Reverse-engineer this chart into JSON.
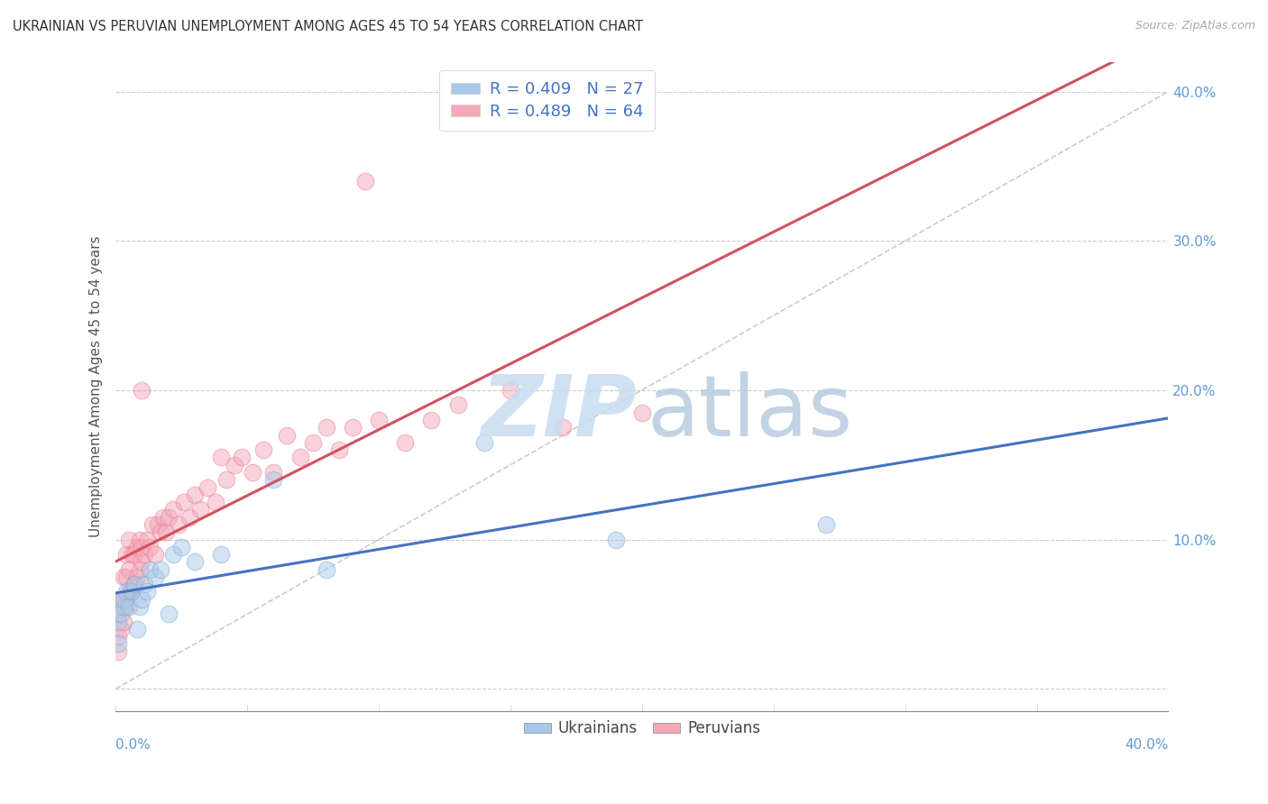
{
  "title": "UKRAINIAN VS PERUVIAN UNEMPLOYMENT AMONG AGES 45 TO 54 YEARS CORRELATION CHART",
  "source": "Source: ZipAtlas.com",
  "ylabel": "Unemployment Among Ages 45 to 54 years",
  "xlim": [
    0.0,
    0.4
  ],
  "ylim": [
    -0.015,
    0.42
  ],
  "yticks": [
    0.0,
    0.1,
    0.2,
    0.3,
    0.4
  ],
  "ytick_labels": [
    "",
    "10.0%",
    "20.0%",
    "30.0%",
    "40.0%"
  ],
  "legend_label_ukrainians": "Ukrainians",
  "legend_label_peruvians": "Peruvians",
  "ukrainians_color": "#a8c8e8",
  "peruvians_color": "#f4a8b8",
  "ukrainians_edge_color": "#7aaed4",
  "peruvians_edge_color": "#e8809a",
  "trendline_ukrainians_color": "#4472c4",
  "trendline_peruvians_color": "#d45060",
  "trendline_dashed_color": "#cccccc",
  "watermark_zip_color": "#c8ddf0",
  "watermark_atlas_color": "#b8cce0",
  "R_ukrainians": 0.409,
  "N_ukrainians": 27,
  "R_peruvians": 0.489,
  "N_peruvians": 64,
  "ukrainians_x": [
    0.001,
    0.001,
    0.002,
    0.003,
    0.003,
    0.004,
    0.005,
    0.006,
    0.007,
    0.008,
    0.009,
    0.01,
    0.011,
    0.012,
    0.013,
    0.015,
    0.017,
    0.02,
    0.022,
    0.025,
    0.03,
    0.04,
    0.06,
    0.08,
    0.14,
    0.19,
    0.27
  ],
  "ukrainians_y": [
    0.03,
    0.045,
    0.05,
    0.055,
    0.06,
    0.065,
    0.055,
    0.065,
    0.07,
    0.04,
    0.055,
    0.06,
    0.07,
    0.065,
    0.08,
    0.075,
    0.08,
    0.05,
    0.09,
    0.095,
    0.085,
    0.09,
    0.14,
    0.08,
    0.165,
    0.1,
    0.11
  ],
  "peruvians_x": [
    0.001,
    0.001,
    0.001,
    0.002,
    0.002,
    0.003,
    0.003,
    0.003,
    0.004,
    0.004,
    0.004,
    0.005,
    0.005,
    0.005,
    0.006,
    0.006,
    0.007,
    0.007,
    0.008,
    0.008,
    0.009,
    0.009,
    0.01,
    0.01,
    0.01,
    0.011,
    0.012,
    0.013,
    0.014,
    0.015,
    0.016,
    0.017,
    0.018,
    0.019,
    0.02,
    0.022,
    0.024,
    0.026,
    0.028,
    0.03,
    0.032,
    0.035,
    0.038,
    0.04,
    0.042,
    0.045,
    0.048,
    0.052,
    0.056,
    0.06,
    0.065,
    0.07,
    0.075,
    0.08,
    0.085,
    0.09,
    0.095,
    0.1,
    0.11,
    0.12,
    0.13,
    0.15,
    0.17,
    0.2
  ],
  "peruvians_y": [
    0.025,
    0.035,
    0.05,
    0.04,
    0.06,
    0.045,
    0.06,
    0.075,
    0.055,
    0.075,
    0.09,
    0.065,
    0.08,
    0.1,
    0.065,
    0.09,
    0.07,
    0.09,
    0.075,
    0.095,
    0.08,
    0.1,
    0.085,
    0.095,
    0.2,
    0.09,
    0.1,
    0.095,
    0.11,
    0.09,
    0.11,
    0.105,
    0.115,
    0.105,
    0.115,
    0.12,
    0.11,
    0.125,
    0.115,
    0.13,
    0.12,
    0.135,
    0.125,
    0.155,
    0.14,
    0.15,
    0.155,
    0.145,
    0.16,
    0.145,
    0.17,
    0.155,
    0.165,
    0.175,
    0.16,
    0.175,
    0.34,
    0.18,
    0.165,
    0.18,
    0.19,
    0.2,
    0.175,
    0.185
  ]
}
